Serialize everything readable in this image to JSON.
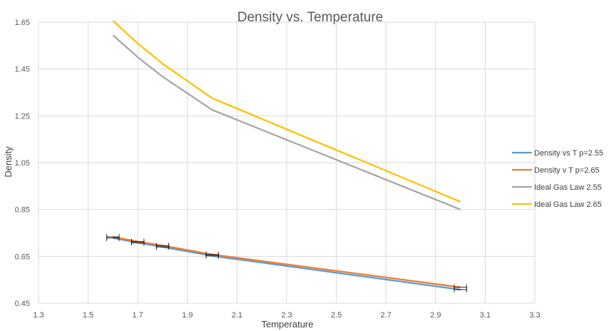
{
  "chart_data": {
    "type": "line",
    "title": "Density vs. Temperature",
    "xlabel": "Temperature",
    "ylabel": "Density",
    "xlim": [
      1.3,
      3.3
    ],
    "ylim": [
      0.45,
      1.65
    ],
    "x_ticks": [
      1.3,
      1.5,
      1.7,
      1.9,
      2.1,
      2.3,
      2.5,
      2.7,
      2.9,
      3.1,
      3.3
    ],
    "y_ticks": [
      0.45,
      0.65,
      0.85,
      1.05,
      1.25,
      1.45,
      1.65
    ],
    "x_tick_labels": [
      "1.3",
      "1.5",
      "1.7",
      "1.9",
      "2.1",
      "2.3",
      "2.5",
      "2.7",
      "2.9",
      "3.1",
      "3.3"
    ],
    "y_tick_labels": [
      "0.45",
      "0.65",
      "0.85",
      "1.05",
      "1.25",
      "1.45",
      "1.65"
    ],
    "grid": true,
    "legend_position": "right",
    "series": [
      {
        "name": "Density vs T p=2.55",
        "color": "#5B9BD5",
        "x": [
          1.6,
          1.7,
          1.8,
          2.0,
          3.0
        ],
        "y": [
          0.728,
          0.708,
          0.69,
          0.652,
          0.508
        ],
        "x_error": 0.025
      },
      {
        "name": "Density v T p=2.65",
        "color": "#ED7D31",
        "x": [
          1.6,
          1.7,
          1.8,
          2.0,
          3.0
        ],
        "y": [
          0.733,
          0.713,
          0.696,
          0.658,
          0.518
        ],
        "x_error": 0.025
      },
      {
        "name": "Ideal Gas Law 2.55",
        "color": "#A5A5A5",
        "x": [
          1.6,
          1.7,
          1.8,
          2.0,
          3.0
        ],
        "y": [
          1.594,
          1.5,
          1.417,
          1.275,
          0.85
        ]
      },
      {
        "name": "Ideal Gas Law 2.65",
        "color": "#FFC000",
        "x": [
          1.6,
          1.7,
          1.8,
          2.0,
          3.0
        ],
        "y": [
          1.656,
          1.559,
          1.472,
          1.325,
          0.883
        ]
      }
    ]
  }
}
